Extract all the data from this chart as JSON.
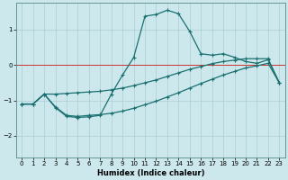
{
  "title": "",
  "xlabel": "Humidex (Indice chaleur)",
  "ylabel": "",
  "bg_color": "#cce8ec",
  "grid_color": "#aacdd4",
  "line_color": "#1a7070",
  "red_line_color": "#cc3333",
  "xlim": [
    -0.5,
    23.5
  ],
  "ylim": [
    -2.6,
    1.75
  ],
  "x_ticks": [
    0,
    1,
    2,
    3,
    4,
    5,
    6,
    7,
    8,
    9,
    10,
    11,
    12,
    13,
    14,
    15,
    16,
    17,
    18,
    19,
    20,
    21,
    22,
    23
  ],
  "y_ticks": [
    -2,
    -1,
    0,
    1
  ],
  "curve1_x": [
    0,
    1,
    2,
    3,
    4,
    5,
    6,
    7,
    8,
    9,
    10,
    11,
    12,
    13,
    14,
    15,
    16,
    17,
    18,
    19,
    20,
    21,
    22,
    23
  ],
  "curve1_y": [
    -1.1,
    -1.1,
    -0.82,
    -1.2,
    -1.45,
    -1.48,
    -1.46,
    -1.42,
    -0.82,
    -0.28,
    0.22,
    1.38,
    1.43,
    1.55,
    1.45,
    0.95,
    0.32,
    0.28,
    0.32,
    0.22,
    0.1,
    0.05,
    0.15,
    -0.5
  ],
  "curve2_x": [
    0,
    1,
    2,
    3,
    4,
    5,
    6,
    7,
    8,
    9,
    10,
    11,
    12,
    13,
    14,
    15,
    16,
    17,
    18,
    19,
    20,
    21,
    22,
    23
  ],
  "curve2_y": [
    -1.1,
    -1.1,
    -0.82,
    -0.82,
    -0.8,
    -0.78,
    -0.76,
    -0.74,
    -0.7,
    -0.65,
    -0.58,
    -0.5,
    -0.42,
    -0.32,
    -0.22,
    -0.12,
    -0.04,
    0.04,
    0.1,
    0.14,
    0.18,
    0.18,
    0.18,
    -0.5
  ],
  "curve3_x": [
    0,
    1,
    2,
    3,
    4,
    5,
    6,
    7,
    8,
    9,
    10,
    11,
    12,
    13,
    14,
    15,
    16,
    17,
    18,
    19,
    20,
    21,
    22,
    23
  ],
  "curve3_y": [
    -1.1,
    -1.1,
    -0.82,
    -1.18,
    -1.42,
    -1.45,
    -1.42,
    -1.4,
    -1.36,
    -1.3,
    -1.22,
    -1.12,
    -1.02,
    -0.9,
    -0.78,
    -0.65,
    -0.52,
    -0.4,
    -0.28,
    -0.18,
    -0.08,
    -0.02,
    0.05,
    -0.5
  ]
}
